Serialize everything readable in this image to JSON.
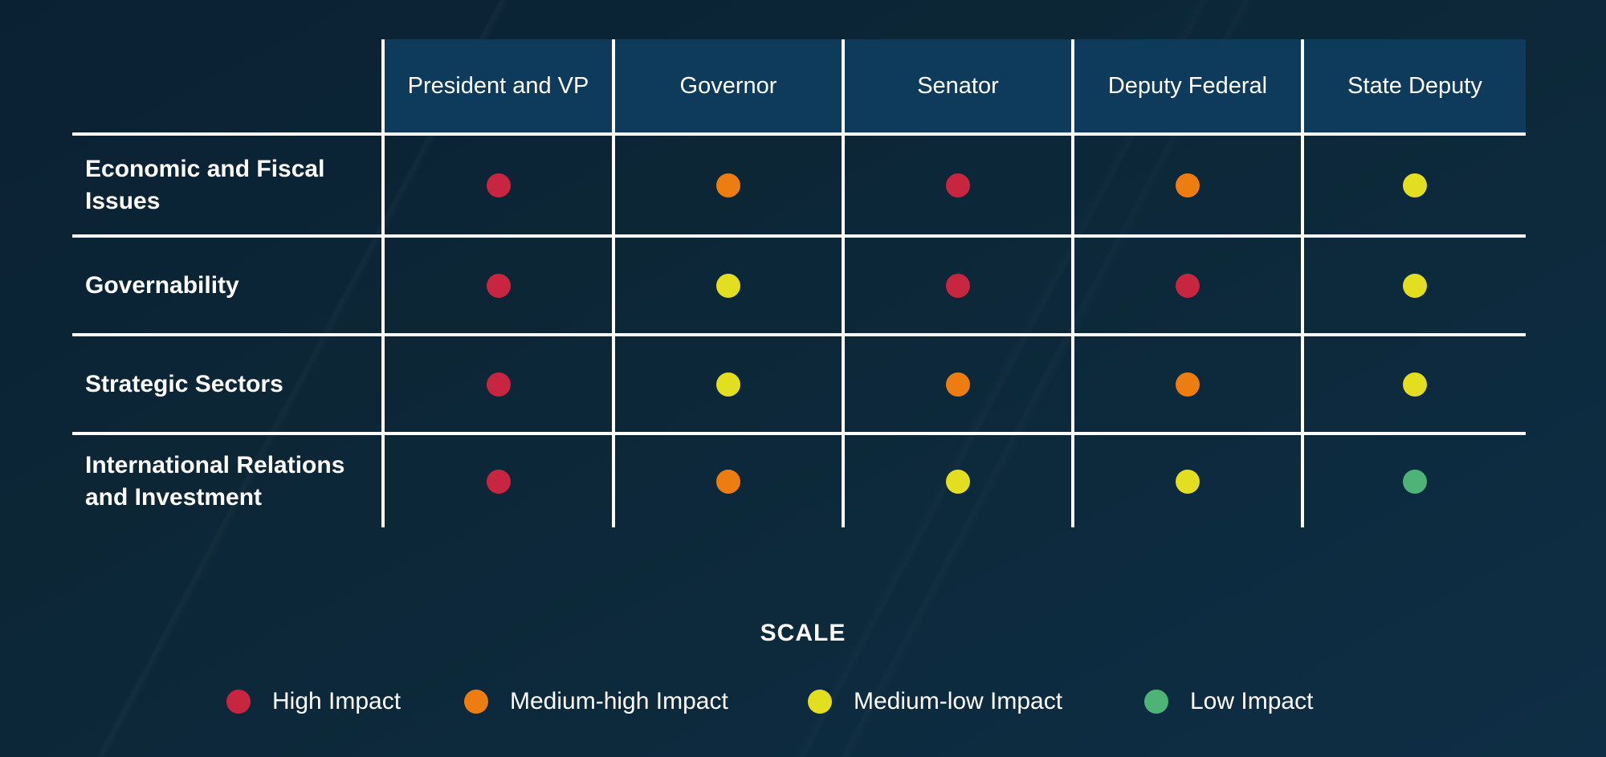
{
  "table": {
    "columns": [
      "President and VP",
      "Governor",
      "Senator",
      "Deputy Federal",
      "State Deputy"
    ],
    "rows": [
      {
        "label": "Economic and Fiscal Issues",
        "cells": [
          "high",
          "medium-high",
          "high",
          "medium-high",
          "medium-low"
        ]
      },
      {
        "label": "Governability",
        "cells": [
          "high",
          "medium-low",
          "high",
          "high",
          "medium-low"
        ]
      },
      {
        "label": "Strategic Sectors",
        "cells": [
          "high",
          "medium-low",
          "medium-high",
          "medium-high",
          "medium-low"
        ]
      },
      {
        "label": "International Relations and Investment",
        "cells": [
          "high",
          "medium-high",
          "medium-low",
          "medium-low",
          "low"
        ]
      }
    ]
  },
  "legend": {
    "title": "SCALE",
    "items": [
      {
        "label": "High Impact",
        "level": "high"
      },
      {
        "label": "Medium-high Impact",
        "level": "medium-high"
      },
      {
        "label": "Medium-low Impact",
        "level": "medium-low"
      },
      {
        "label": "Low Impact",
        "level": "low"
      }
    ],
    "colors": {
      "high": "#c72540",
      "medium-high": "#ee7d11",
      "medium-low": "#e3de20",
      "low": "#4eb377"
    }
  },
  "colors": {
    "background": "#0c2737",
    "header_bg": "#0e3a5c",
    "grid_line": "#ffffff",
    "text": "#ffffff"
  },
  "chart_data": {
    "type": "heatmap",
    "title": "",
    "columns": [
      "President and VP",
      "Governor",
      "Senator",
      "Deputy Federal",
      "State Deputy"
    ],
    "rows": [
      "Economic and Fiscal Issues",
      "Governability",
      "Strategic Sectors",
      "International Relations and Investment"
    ],
    "values": [
      [
        "high",
        "medium-high",
        "high",
        "medium-high",
        "medium-low"
      ],
      [
        "high",
        "medium-low",
        "high",
        "high",
        "medium-low"
      ],
      [
        "high",
        "medium-low",
        "medium-high",
        "medium-high",
        "medium-low"
      ],
      [
        "high",
        "medium-high",
        "medium-low",
        "medium-low",
        "low"
      ]
    ],
    "value_scale": [
      "high",
      "medium-high",
      "medium-low",
      "low"
    ],
    "legend_title": "SCALE",
    "legend_entries": [
      "High Impact",
      "Medium-high Impact",
      "Medium-low Impact",
      "Low Impact"
    ],
    "legend_position": "bottom",
    "grid": true
  }
}
